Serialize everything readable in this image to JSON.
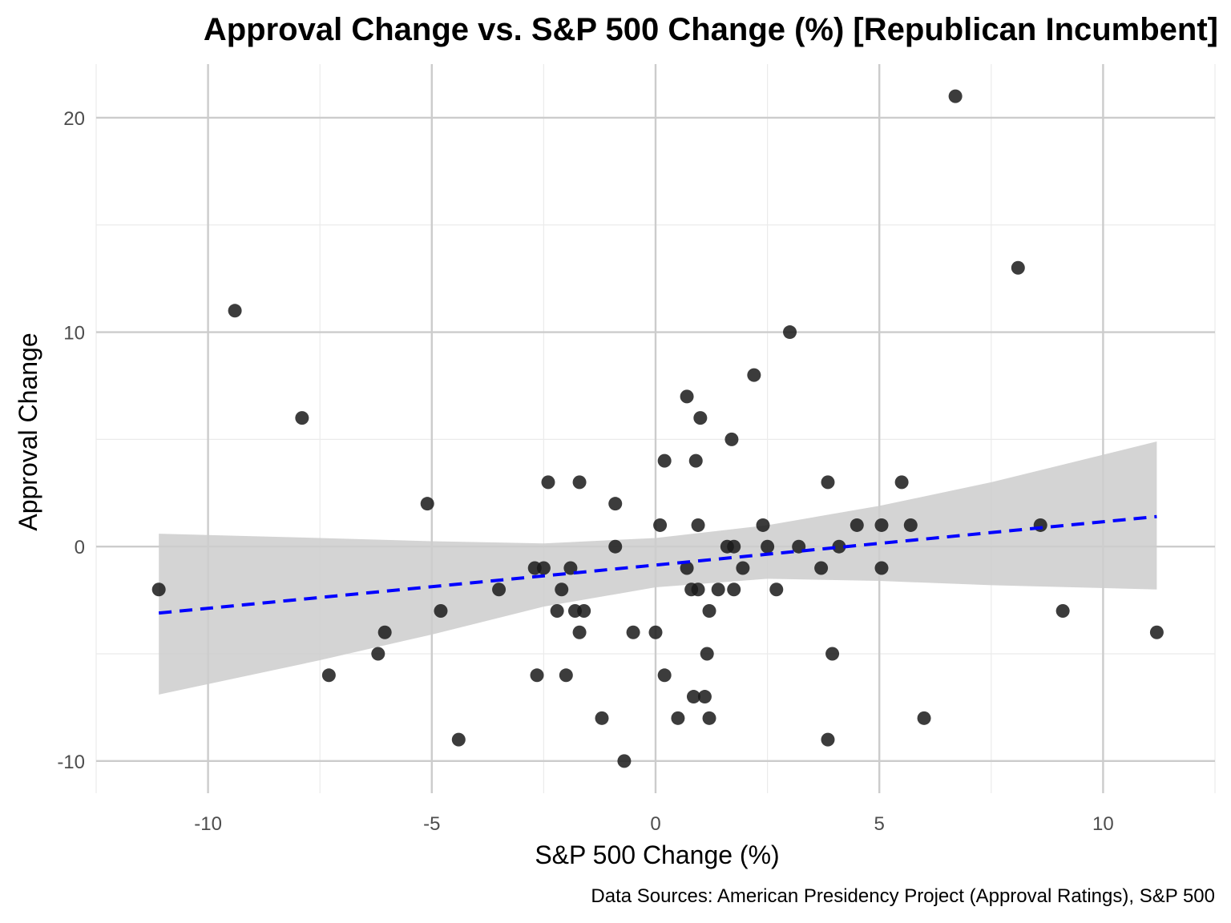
{
  "chart_data": {
    "type": "scatter",
    "title": "Approval Change vs. S&P 500 Change (%) [Republican Incumbent]",
    "xlabel": "S&P 500 Change (%)",
    "ylabel": "Approval Change",
    "caption": "Data Sources: American Presidency Project (Approval Ratings), S&P 500",
    "xlim": [
      -12.5,
      12.5
    ],
    "ylim": [
      -11.5,
      22.5
    ],
    "x_ticks": [
      -10,
      -5,
      0,
      5,
      10
    ],
    "y_ticks": [
      -10,
      0,
      10,
      20
    ],
    "grid": true,
    "point_color": "#1a1a1a",
    "trend_line": {
      "type": "linear",
      "style": "dashed",
      "color": "#0000ff",
      "x_range": [
        -11.1,
        11.2
      ],
      "y_at_start": -3.1,
      "y_at_end": 1.4
    },
    "confidence_band": {
      "color": "#cccccc",
      "x": [
        -11.1,
        -7.5,
        -5.0,
        -2.5,
        0.0,
        2.5,
        5.0,
        7.5,
        11.2
      ],
      "upper": [
        0.6,
        0.4,
        0.25,
        0.15,
        0.4,
        1.0,
        1.9,
        3.0,
        4.9
      ],
      "lower": [
        -6.9,
        -5.3,
        -4.1,
        -2.8,
        -1.9,
        -1.5,
        -1.6,
        -1.8,
        -2.0
      ]
    },
    "points": [
      {
        "x": -11.1,
        "y": -2
      },
      {
        "x": -9.4,
        "y": 11
      },
      {
        "x": -7.9,
        "y": 6
      },
      {
        "x": -7.3,
        "y": -6
      },
      {
        "x": -6.2,
        "y": -5
      },
      {
        "x": -6.05,
        "y": -4
      },
      {
        "x": -5.1,
        "y": 2
      },
      {
        "x": -4.8,
        "y": -3
      },
      {
        "x": -4.4,
        "y": -9
      },
      {
        "x": -3.5,
        "y": -2
      },
      {
        "x": -2.7,
        "y": -1
      },
      {
        "x": -2.65,
        "y": -6
      },
      {
        "x": -2.5,
        "y": -1
      },
      {
        "x": -2.4,
        "y": 3
      },
      {
        "x": -2.2,
        "y": -3
      },
      {
        "x": -2.1,
        "y": -2
      },
      {
        "x": -2.0,
        "y": -6
      },
      {
        "x": -1.9,
        "y": -1
      },
      {
        "x": -1.8,
        "y": -3
      },
      {
        "x": -1.7,
        "y": -4
      },
      {
        "x": -1.7,
        "y": 3
      },
      {
        "x": -1.6,
        "y": -3
      },
      {
        "x": -1.2,
        "y": -8
      },
      {
        "x": -0.9,
        "y": 2
      },
      {
        "x": -0.9,
        "y": 0
      },
      {
        "x": -0.7,
        "y": -10
      },
      {
        "x": -0.5,
        "y": -4
      },
      {
        "x": 0.0,
        "y": -4
      },
      {
        "x": 0.1,
        "y": 1
      },
      {
        "x": 0.2,
        "y": -6
      },
      {
        "x": 0.2,
        "y": 4
      },
      {
        "x": 0.5,
        "y": -8
      },
      {
        "x": 0.7,
        "y": 7
      },
      {
        "x": 0.7,
        "y": -1
      },
      {
        "x": 0.8,
        "y": -2
      },
      {
        "x": 0.85,
        "y": -7
      },
      {
        "x": 0.9,
        "y": 4
      },
      {
        "x": 0.95,
        "y": -2
      },
      {
        "x": 0.95,
        "y": 1
      },
      {
        "x": 1.0,
        "y": 6
      },
      {
        "x": 1.1,
        "y": -7
      },
      {
        "x": 1.15,
        "y": -5
      },
      {
        "x": 1.2,
        "y": -3
      },
      {
        "x": 1.2,
        "y": -8
      },
      {
        "x": 1.4,
        "y": -2
      },
      {
        "x": 1.6,
        "y": 0
      },
      {
        "x": 1.7,
        "y": 5
      },
      {
        "x": 1.75,
        "y": -2
      },
      {
        "x": 1.75,
        "y": 0
      },
      {
        "x": 1.95,
        "y": -1
      },
      {
        "x": 2.2,
        "y": 8
      },
      {
        "x": 2.4,
        "y": 1
      },
      {
        "x": 2.5,
        "y": 0
      },
      {
        "x": 2.7,
        "y": -2
      },
      {
        "x": 3.0,
        "y": 10
      },
      {
        "x": 3.2,
        "y": 0
      },
      {
        "x": 3.7,
        "y": -1
      },
      {
        "x": 3.85,
        "y": 3
      },
      {
        "x": 3.85,
        "y": -9
      },
      {
        "x": 3.95,
        "y": -5
      },
      {
        "x": 4.1,
        "y": 0
      },
      {
        "x": 4.5,
        "y": 1
      },
      {
        "x": 5.05,
        "y": 1
      },
      {
        "x": 5.05,
        "y": -1
      },
      {
        "x": 5.5,
        "y": 3
      },
      {
        "x": 5.7,
        "y": 1
      },
      {
        "x": 6.0,
        "y": -8
      },
      {
        "x": 6.7,
        "y": 21
      },
      {
        "x": 8.1,
        "y": 13
      },
      {
        "x": 8.6,
        "y": 1
      },
      {
        "x": 9.1,
        "y": -3
      },
      {
        "x": 11.2,
        "y": -4
      }
    ]
  }
}
